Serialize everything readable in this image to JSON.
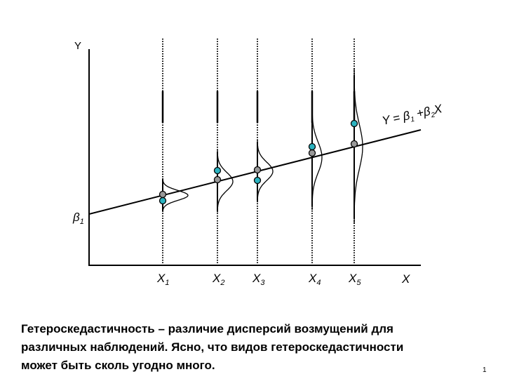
{
  "axes": {
    "y_label": "Y",
    "x_label": "X",
    "intercept": {
      "base": "β",
      "sub": "1"
    }
  },
  "x_points": [
    {
      "base": "X",
      "sub": "1"
    },
    {
      "base": "X",
      "sub": "2"
    },
    {
      "base": "X",
      "sub": "3"
    },
    {
      "base": "X",
      "sub": "4"
    },
    {
      "base": "X",
      "sub": "5"
    }
  ],
  "equation": {
    "parts": [
      {
        "text": "Y = β"
      },
      {
        "sub": "1"
      },
      {
        "text": " +β"
      },
      {
        "sub": "2"
      },
      {
        "text": "X"
      }
    ]
  },
  "caption": {
    "lines": [
      "Гетероскедастичность – различие дисперсий возмущений для",
      "различных наблюдений.  Ясно, что видов гетероскедастичности",
      "может быть сколь угодно много."
    ]
  },
  "page_number": "1"
}
